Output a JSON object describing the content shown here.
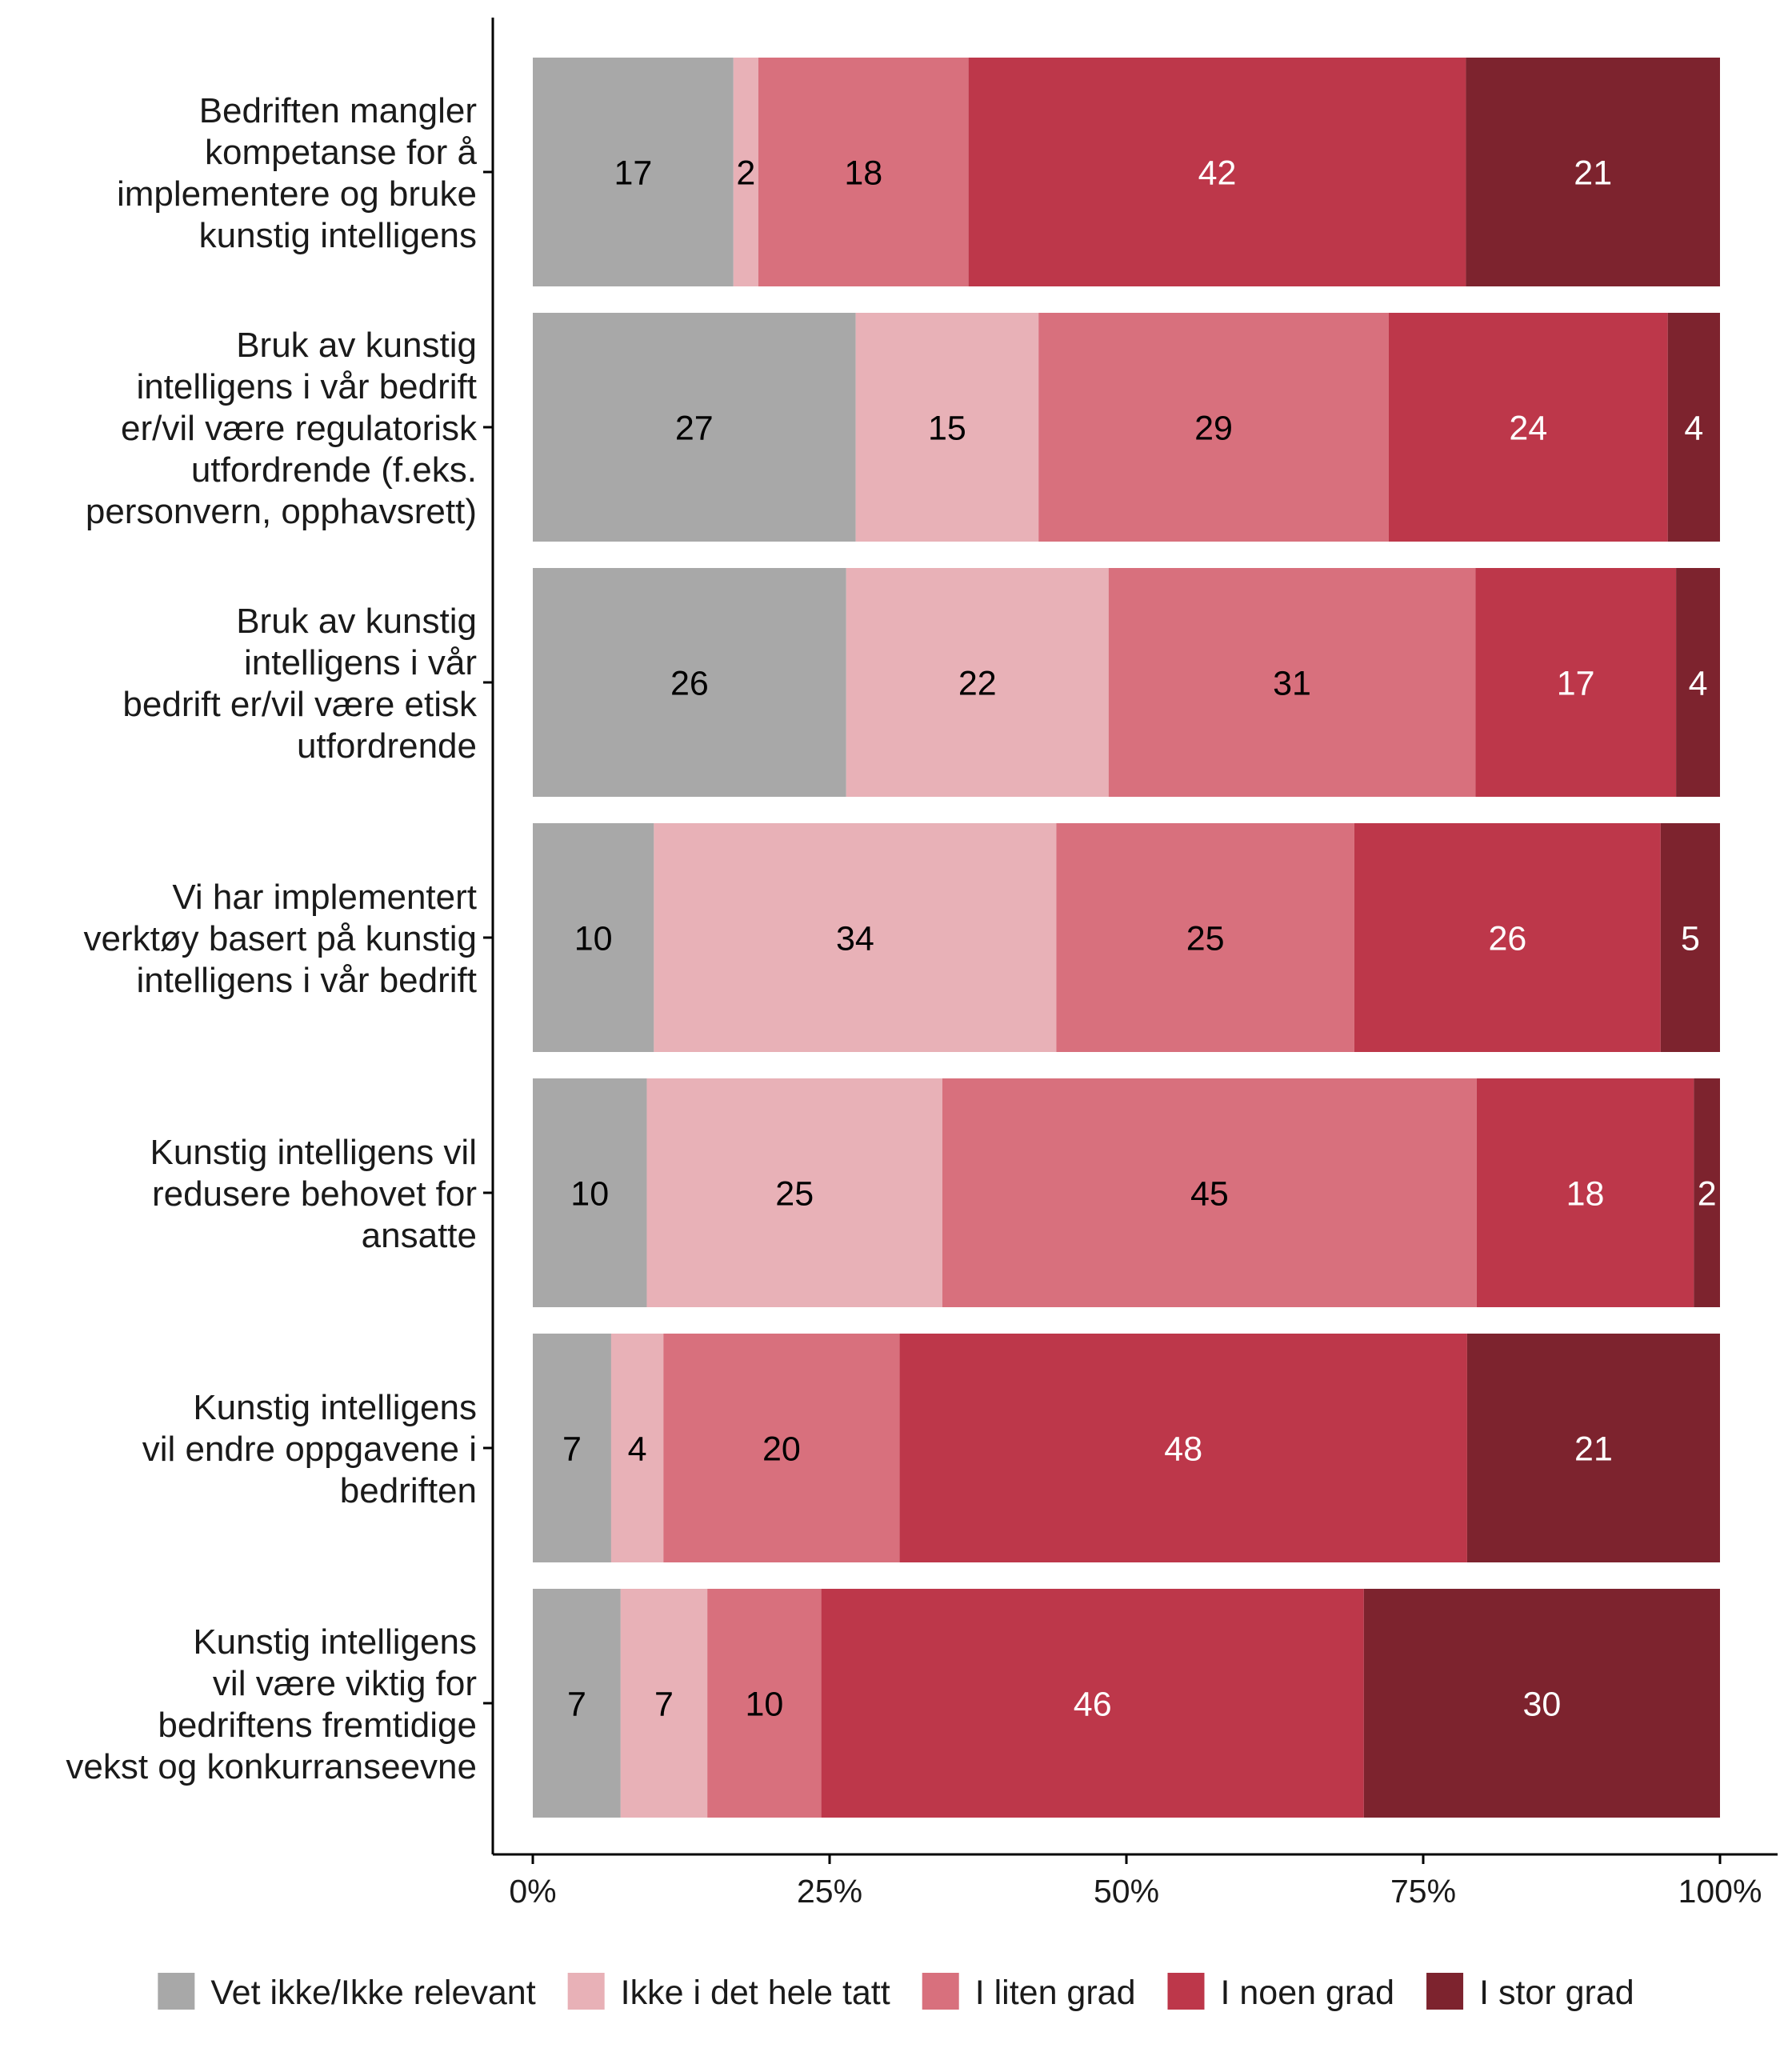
{
  "chart_data": {
    "type": "bar",
    "orientation": "horizontal",
    "stacked": true,
    "normalized": true,
    "categories": [
      [
        "Bedriften mangler",
        "kompetanse for å",
        "implementere og bruke",
        "kunstig intelligens"
      ],
      [
        "Bruk av kunstig",
        "intelligens i vår bedrift",
        "er/vil være regulatorisk",
        "utfordrende (f.eks.",
        "personvern, opphavsrett)"
      ],
      [
        "Bruk av kunstig",
        "intelligens i vår",
        "bedrift er/vil være etisk",
        "utfordrende"
      ],
      [
        "Vi har implementert",
        "verktøy basert på kunstig",
        "intelligens i vår bedrift"
      ],
      [
        "Kunstig intelligens vil",
        "redusere behovet for",
        "ansatte"
      ],
      [
        "Kunstig intelligens",
        "vil endre oppgavene i",
        "bedriften"
      ],
      [
        "Kunstig intelligens",
        "vil være viktig for",
        "bedriftens fremtidige",
        "vekst og konkurranseevne"
      ]
    ],
    "series": [
      {
        "name": "Vet ikke/Ikke relevant",
        "color": "#a8a8a8",
        "label_color": "#000000",
        "values": [
          16.9,
          27.2,
          26.4,
          10.2,
          9.6,
          6.6,
          7.4
        ],
        "labels": [
          "17",
          "27",
          "26",
          "10",
          "10",
          "7",
          "7"
        ]
      },
      {
        "name": "Ikke i det hele tatt",
        "color": "#e8b1b7",
        "label_color": "#000000",
        "values": [
          2.1,
          15.4,
          22.1,
          33.9,
          24.9,
          4.4,
          7.3
        ],
        "labels": [
          "2",
          "15",
          "22",
          "34",
          "25",
          "4",
          "7"
        ]
      },
      {
        "name": "I liten grad",
        "color": "#d8707d",
        "label_color": "#000000",
        "values": [
          17.7,
          29.5,
          30.9,
          25.1,
          45.0,
          19.9,
          9.6
        ],
        "labels": [
          "18",
          "29",
          "31",
          "25",
          "45",
          "20",
          "10"
        ]
      },
      {
        "name": "I noen grad",
        "color": "#bd374a",
        "label_color": "#ffffff",
        "values": [
          41.9,
          23.5,
          16.9,
          25.8,
          18.3,
          47.8,
          45.7
        ],
        "labels": [
          "42",
          "24",
          "17",
          "26",
          "18",
          "48",
          "46"
        ]
      },
      {
        "name": "I stor grad",
        "color": "#7d232e",
        "label_color": "#ffffff",
        "values": [
          21.4,
          4.4,
          3.7,
          5.0,
          2.2,
          21.3,
          30.0
        ],
        "labels": [
          "21",
          "4",
          "4",
          "5",
          "2",
          "21",
          "30"
        ]
      }
    ],
    "xlim": [
      0,
      100
    ],
    "x_ticks": [
      0,
      25,
      50,
      75,
      100
    ],
    "x_tick_labels": [
      "0%",
      "25%",
      "50%",
      "75%",
      "100%"
    ],
    "grid": false,
    "legend_position": "bottom"
  }
}
